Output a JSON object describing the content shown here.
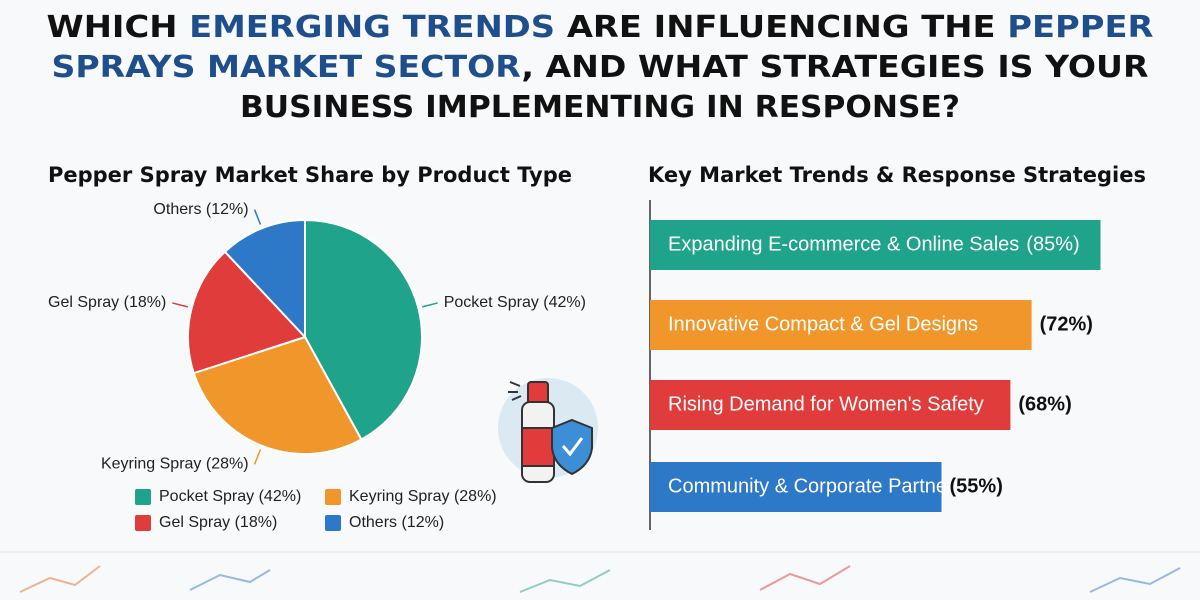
{
  "title": [
    [
      {
        "text": "WHICH ",
        "color": "#111111"
      },
      {
        "text": "EMERGING TRENDS",
        "color": "#1f4e8c"
      },
      {
        "text": " ARE INFLUENCING THE ",
        "color": "#111111"
      },
      {
        "text": "PEPPER",
        "color": "#1f4e8c"
      }
    ],
    [
      {
        "text": "SPRAYS MARKET SECTOR",
        "color": "#1f4e8c"
      },
      {
        "text": ", AND WHAT STRATEGIES IS YOUR",
        "color": "#111111"
      }
    ],
    [
      {
        "text": "BUSINESS IMPLEMENTING IN RESPONSE?",
        "color": "#111111"
      }
    ]
  ],
  "chart_data": [
    {
      "type": "pie",
      "title": "Pepper Spray Market Share by Product Type",
      "values": [
        42,
        28,
        18,
        12
      ],
      "value_labels": [
        "Pocket Spray (42%)",
        "Keyring Spray (28%)",
        "Gel Spray (18%)",
        "Others (12%)"
      ],
      "colors": [
        "#1fa38a",
        "#f0962a",
        "#e03c3c",
        "#2e78c8"
      ],
      "legend": "bottom"
    },
    {
      "type": "hbar",
      "title": "Key Market Trends & Response Strategies",
      "categories": [
        "Expanding E-commerce & Online Sales",
        "Innovative Compact & Gel Designs",
        "Rising Demand for Women's Safety",
        "Community & Corporate Partnerships"
      ],
      "values": [
        85,
        72,
        68,
        55
      ],
      "value_labels": [
        "(85%)",
        "(72%)",
        "(68%)",
        "(55%)"
      ],
      "colors": [
        "#1fa38a",
        "#f0962a",
        "#e03c3c",
        "#2e78c8"
      ]
    }
  ]
}
